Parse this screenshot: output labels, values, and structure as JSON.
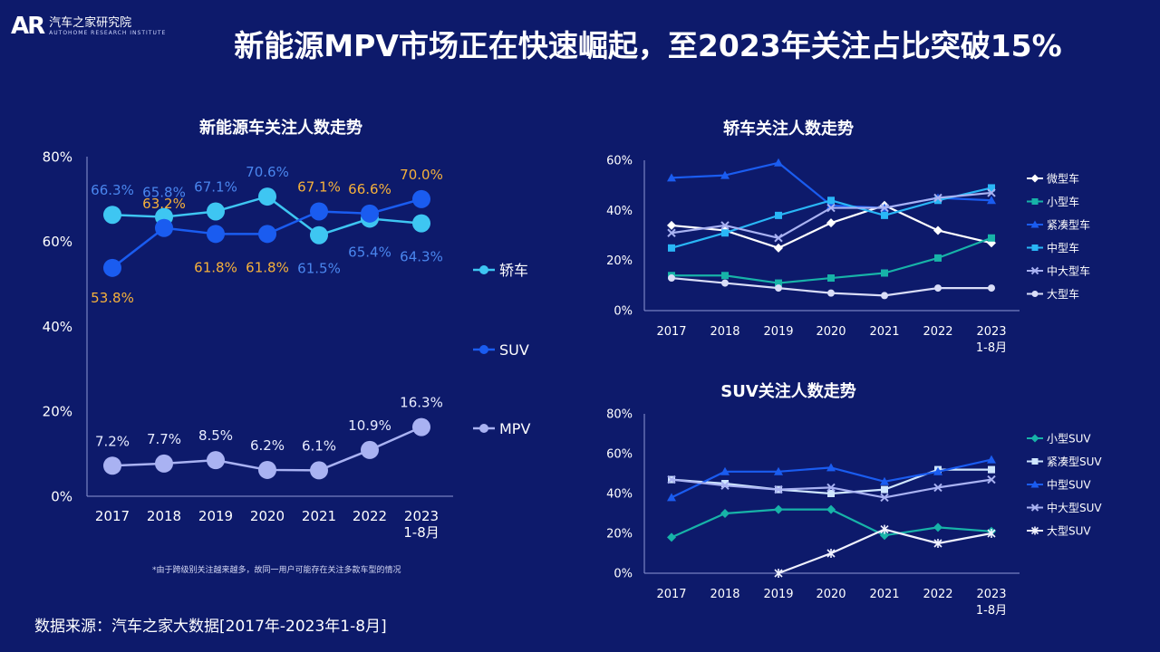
{
  "header": {
    "logo_mark": "AR",
    "logo_cn": "汽车之家研究院",
    "logo_en": "AUTOHOME RESEARCH INSTITUTE",
    "title": "新能源MPV市场正在快速崛起，至2023年关注占比突破15%"
  },
  "footnote": "*由于跨级别关注越来越多，故同一用户可能存在关注多款车型的情况",
  "source": "数据来源：汽车之家大数据[2017年-2023年1-8月]",
  "colors": {
    "background": "#0d1a6b",
    "sedan": "#3ec6f2",
    "suv": "#1a5cf0",
    "mpv": "#a9b2f2",
    "label_orange": "#f6b13b",
    "label_blue": "#4a86ee",
    "label_white": "#e8ecff"
  },
  "chart_data": [
    {
      "id": "nev",
      "type": "line",
      "title": "新能源车关注人数走势",
      "categories": [
        "2017",
        "2018",
        "2019",
        "2020",
        "2021",
        "2022",
        "2023\n1-8月"
      ],
      "ylim": [
        0,
        80
      ],
      "yticks": [
        "0%",
        "20%",
        "40%",
        "60%",
        "80%"
      ],
      "legend_position": "right",
      "series": [
        {
          "name": "轿车",
          "values": [
            66.3,
            65.8,
            67.1,
            70.6,
            61.5,
            65.4,
            64.3
          ],
          "labels": [
            "66.3%",
            "65.8%",
            "67.1%",
            "70.6%",
            "61.5%",
            "65.4%",
            "64.3%"
          ]
        },
        {
          "name": "SUV",
          "values": [
            53.8,
            63.2,
            61.8,
            61.8,
            67.1,
            66.6,
            70.0
          ],
          "labels": [
            "53.8%",
            "63.2%",
            "61.8%",
            "61.8%",
            "67.1%",
            "66.6%",
            "70.0%"
          ]
        },
        {
          "name": "MPV",
          "values": [
            7.2,
            7.7,
            8.5,
            6.2,
            6.1,
            10.9,
            16.3
          ],
          "labels": [
            "7.2%",
            "7.7%",
            "8.5%",
            "6.2%",
            "6.1%",
            "10.9%",
            "16.3%"
          ]
        }
      ]
    },
    {
      "id": "sedan",
      "type": "line",
      "title": "轿车关注人数走势",
      "categories": [
        "2017",
        "2018",
        "2019",
        "2020",
        "2021",
        "2022",
        "2023\n1-8月"
      ],
      "ylim": [
        0,
        60
      ],
      "yticks": [
        "0%",
        "20%",
        "40%",
        "60%"
      ],
      "legend_position": "right",
      "series": [
        {
          "name": "微型车",
          "color": "#ffffff",
          "marker": "diamond",
          "values": [
            34,
            32,
            25,
            35,
            42,
            32,
            27
          ]
        },
        {
          "name": "小型车",
          "color": "#17b3a8",
          "marker": "square",
          "values": [
            14,
            14,
            11,
            13,
            15,
            21,
            29
          ]
        },
        {
          "name": "紧凑型车",
          "color": "#1a5cf0",
          "marker": "triangle",
          "values": [
            53,
            54,
            59,
            42,
            41,
            45,
            44
          ]
        },
        {
          "name": "中型车",
          "color": "#29b6f6",
          "marker": "square",
          "values": [
            25,
            31,
            38,
            44,
            38,
            44,
            49
          ]
        },
        {
          "name": "中大型车",
          "color": "#a9b2f2",
          "marker": "x",
          "values": [
            31,
            34,
            29,
            41,
            41,
            45,
            47
          ]
        },
        {
          "name": "大型车",
          "color": "#d9ddf7",
          "marker": "circle",
          "values": [
            13,
            11,
            9,
            7,
            6,
            9,
            9
          ]
        }
      ]
    },
    {
      "id": "suv",
      "type": "line",
      "title": "SUV关注人数走势",
      "categories": [
        "2017",
        "2018",
        "2019",
        "2020",
        "2021",
        "2022",
        "2023\n1-8月"
      ],
      "ylim": [
        0,
        80
      ],
      "yticks": [
        "0%",
        "20%",
        "40%",
        "60%",
        "80%"
      ],
      "legend_position": "right",
      "series": [
        {
          "name": "小型SUV",
          "color": "#17b3a8",
          "marker": "diamond",
          "values": [
            18,
            30,
            32,
            32,
            19,
            23,
            21
          ]
        },
        {
          "name": "紧凑型SUV",
          "color": "#cfe6ff",
          "marker": "square",
          "values": [
            47,
            45,
            42,
            40,
            42,
            52,
            52
          ]
        },
        {
          "name": "中型SUV",
          "color": "#1a5cf0",
          "marker": "triangle",
          "values": [
            38,
            51,
            51,
            53,
            46,
            51,
            57
          ]
        },
        {
          "name": "中大型SUV",
          "color": "#a9b2f2",
          "marker": "x",
          "values": [
            47,
            44,
            42,
            43,
            38,
            43,
            47
          ]
        },
        {
          "name": "大型SUV",
          "color": "#f0f2ff",
          "marker": "star",
          "values": [
            null,
            null,
            0,
            10,
            22,
            15,
            20
          ]
        }
      ]
    }
  ]
}
